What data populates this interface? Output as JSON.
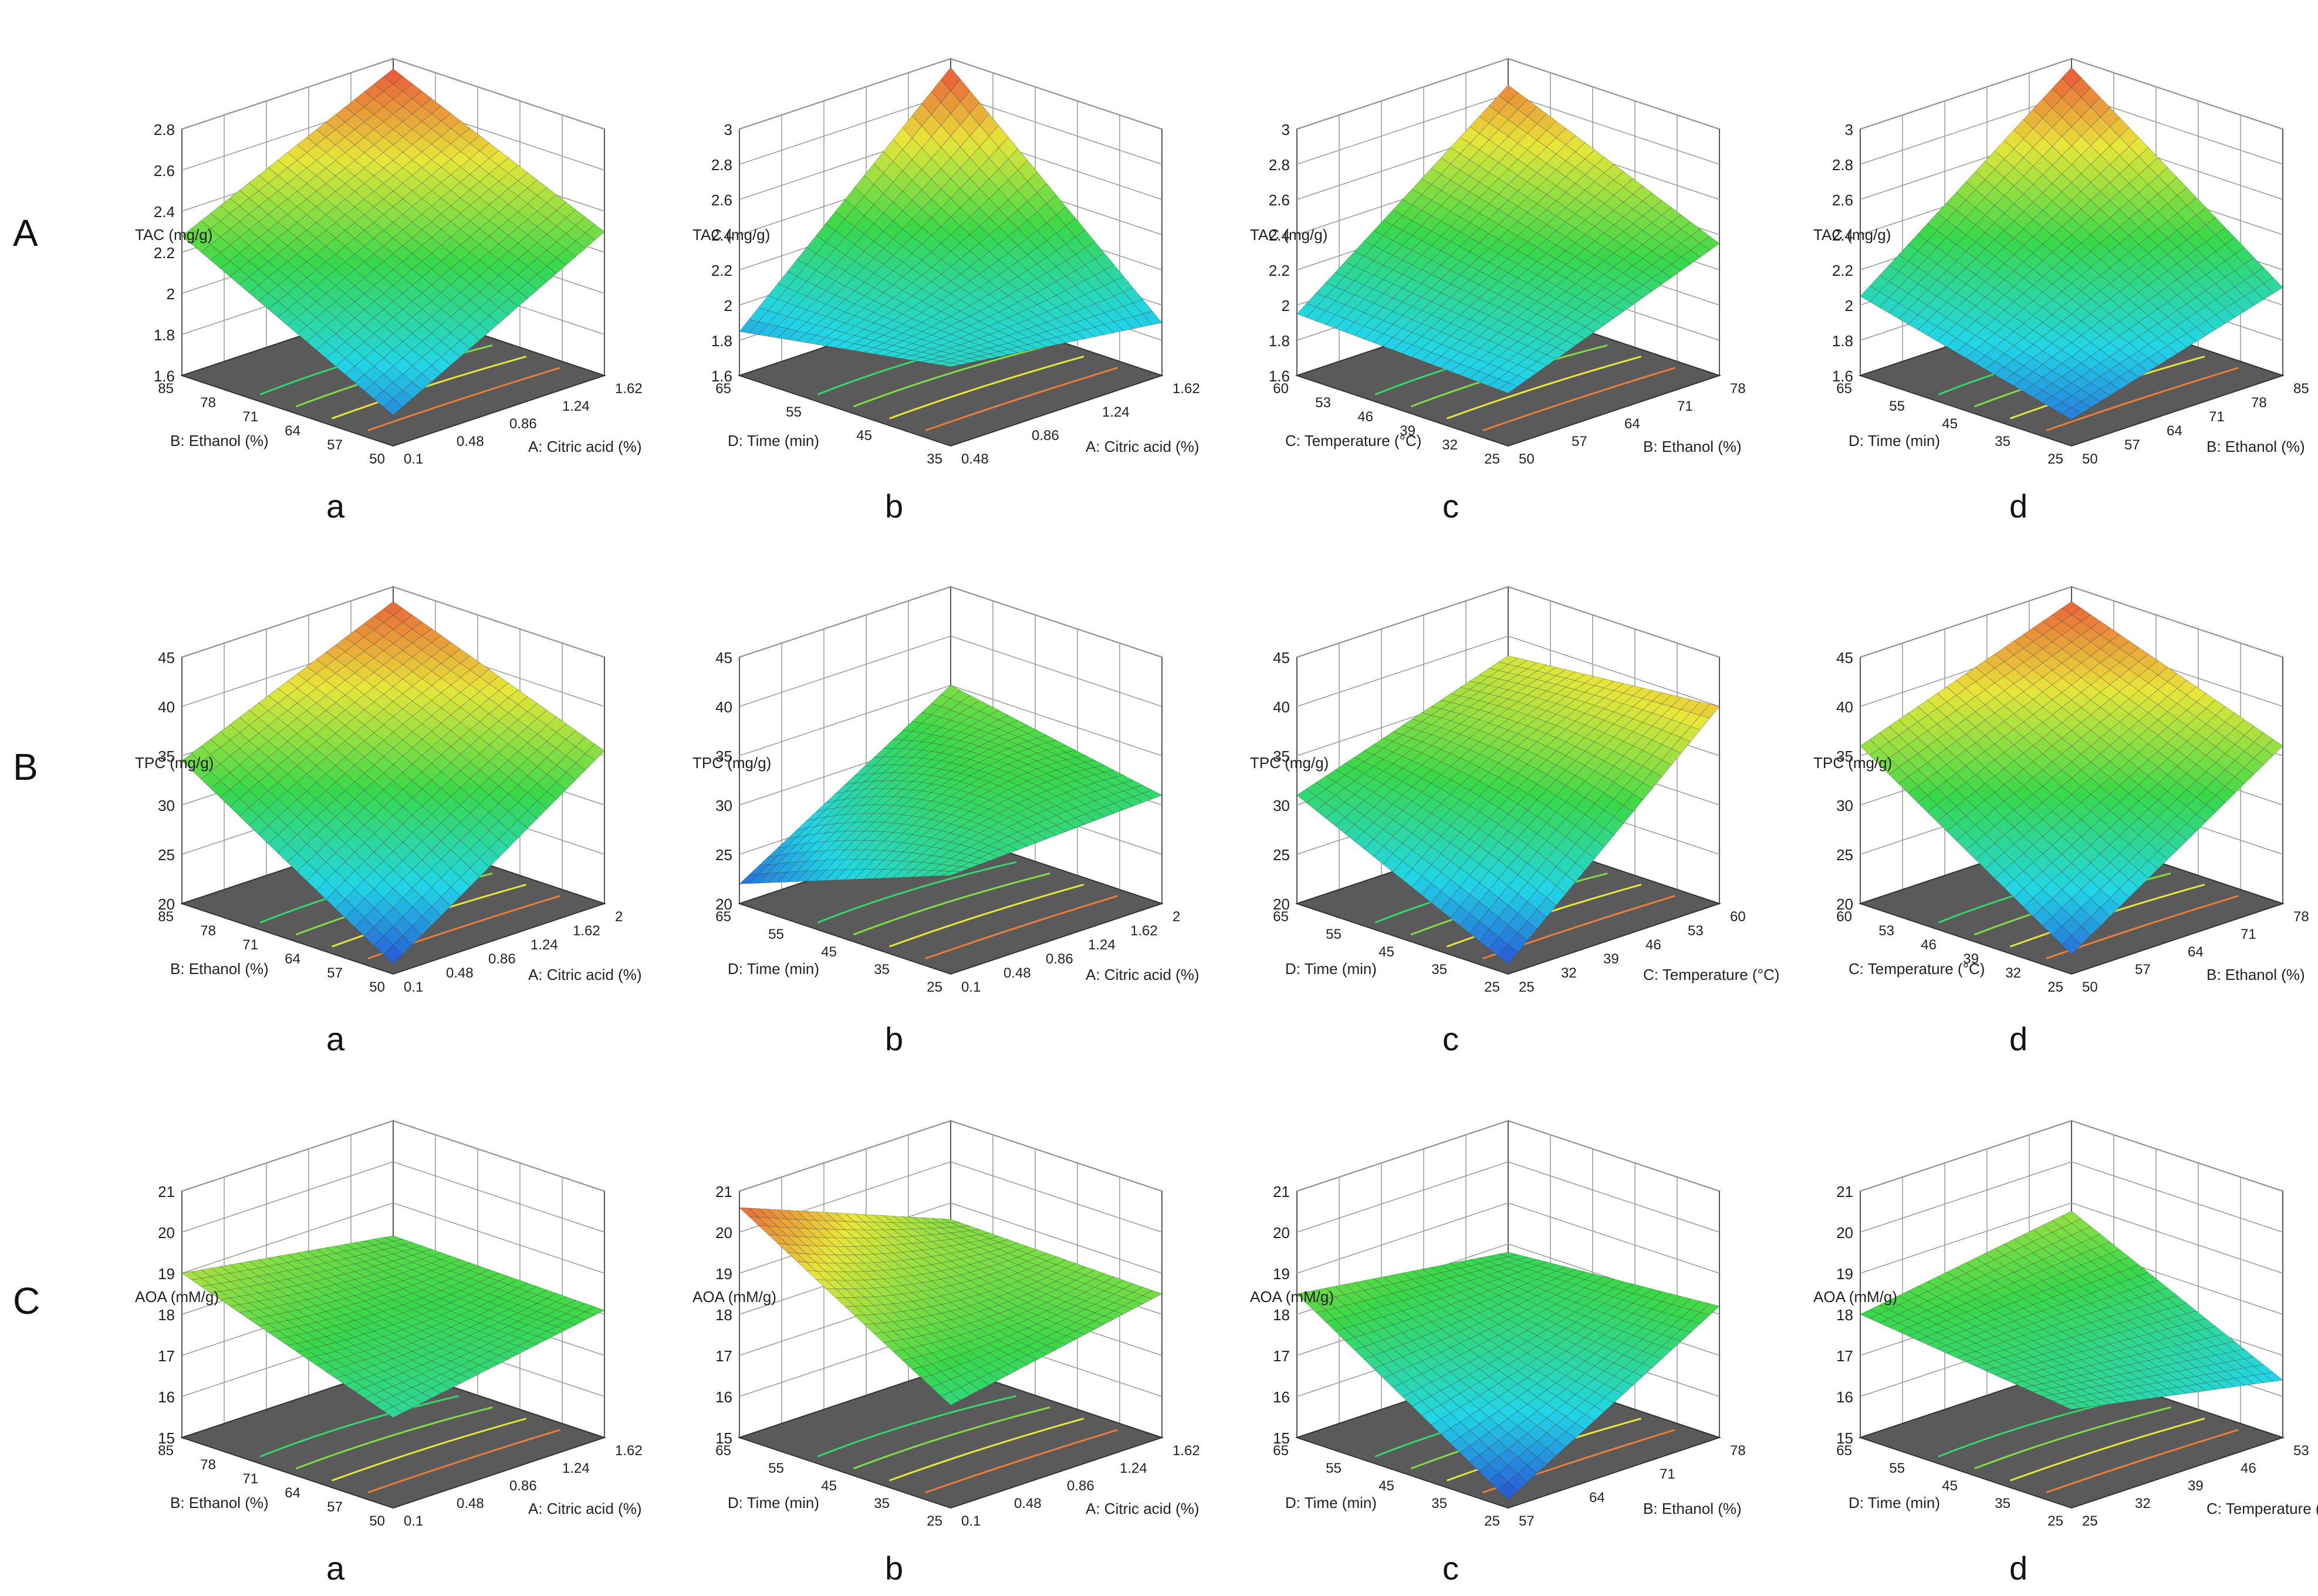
{
  "figure": {
    "row_labels": [
      "A",
      "B",
      "C"
    ],
    "col_labels": [
      "a",
      "b",
      "c",
      "d"
    ]
  },
  "chart_data": [
    {
      "type": "surface3d",
      "row": "A",
      "panel": "a",
      "zlabel": "TAC (mg/g)",
      "zlim": [
        1.6,
        2.8
      ],
      "zticks": [
        "1.6",
        "1.8",
        "2",
        "2.2",
        "2.4",
        "2.6",
        "2.8"
      ],
      "xlabel": "A: Citric acid (%)",
      "xticks": [
        "0.1",
        "0.48",
        "0.86",
        "1.24",
        "1.62"
      ],
      "ylabel": "B: Ethanol (%)",
      "yticks": [
        "50",
        "57",
        "64",
        "71",
        "78",
        "85"
      ],
      "corners": {
        "front": 1.75,
        "left": 2.28,
        "right": 2.3,
        "back": 2.75
      }
    },
    {
      "type": "surface3d",
      "row": "A",
      "panel": "b",
      "zlabel": "TAC (mg/g)",
      "zlim": [
        1.6,
        3
      ],
      "zticks": [
        "1.6",
        "1.8",
        "2",
        "2.2",
        "2.4",
        "2.6",
        "2.8",
        "3"
      ],
      "xlabel": "A: Citric acid (%)",
      "xticks": [
        "0.48",
        "0.86",
        "1.24",
        "1.62"
      ],
      "ylabel": "D: Time (min)",
      "yticks": [
        "35",
        "45",
        "55",
        "65"
      ],
      "corners": {
        "front": 2.05,
        "left": 1.85,
        "right": 1.9,
        "back": 2.95
      },
      "sag": 0.2
    },
    {
      "type": "surface3d",
      "row": "A",
      "panel": "c",
      "zlabel": "TAC (mg/g)",
      "zlim": [
        1.6,
        3
      ],
      "zticks": [
        "1.6",
        "1.8",
        "2",
        "2.2",
        "2.4",
        "2.6",
        "2.8",
        "3"
      ],
      "xlabel": "B: Ethanol (%)",
      "xticks": [
        "50",
        "57",
        "64",
        "71",
        "78"
      ],
      "ylabel": "C: Temperature (°C)",
      "yticks": [
        "25",
        "32",
        "39",
        "46",
        "53",
        "60"
      ],
      "corners": {
        "front": 1.9,
        "left": 1.95,
        "right": 2.35,
        "back": 2.85
      }
    },
    {
      "type": "surface3d",
      "row": "A",
      "panel": "d",
      "zlabel": "TAC (mg/g)",
      "zlim": [
        1.6,
        3
      ],
      "zticks": [
        "1.6",
        "1.8",
        "2",
        "2.2",
        "2.4",
        "2.6",
        "2.8",
        "3"
      ],
      "xlabel": "B: Ethanol (%)",
      "xticks": [
        "50",
        "57",
        "64",
        "71",
        "78",
        "85"
      ],
      "ylabel": "D: Time (min)",
      "yticks": [
        "25",
        "35",
        "45",
        "55",
        "65"
      ],
      "corners": {
        "front": 1.75,
        "left": 2.05,
        "right": 2.1,
        "back": 2.95
      }
    },
    {
      "type": "surface3d",
      "row": "B",
      "panel": "a",
      "zlabel": "TPC (mg/g)",
      "zlim": [
        20,
        45
      ],
      "zticks": [
        "20",
        "25",
        "30",
        "35",
        "40",
        "45"
      ],
      "xlabel": "A: Citric acid (%)",
      "xticks": [
        "0.1",
        "0.48",
        "0.86",
        "1.24",
        "1.62",
        "2"
      ],
      "ylabel": "B: Ethanol (%)",
      "yticks": [
        "50",
        "57",
        "64",
        "71",
        "78",
        "85"
      ],
      "corners": {
        "front": 21,
        "left": 34.5,
        "right": 35.5,
        "back": 43.5
      },
      "sag": -2
    },
    {
      "type": "surface3d",
      "row": "B",
      "panel": "b",
      "zlabel": "TPC (mg/g)",
      "zlim": [
        20,
        45
      ],
      "zticks": [
        "20",
        "25",
        "30",
        "35",
        "40",
        "45"
      ],
      "xlabel": "A: Citric acid (%)",
      "xticks": [
        "0.1",
        "0.48",
        "0.86",
        "1.24",
        "1.62",
        "2"
      ],
      "ylabel": "D: Time (min)",
      "yticks": [
        "25",
        "35",
        "45",
        "55",
        "65"
      ],
      "corners": {
        "front": 30,
        "left": 22,
        "right": 31,
        "back": 35
      },
      "sag": -9
    },
    {
      "type": "surface3d",
      "row": "B",
      "panel": "c",
      "zlabel": "TPC (mg/g)",
      "zlim": [
        20,
        45
      ],
      "zticks": [
        "20",
        "25",
        "30",
        "35",
        "40",
        "45"
      ],
      "xlabel": "C: Temperature (°C)",
      "xticks": [
        "25",
        "32",
        "39",
        "46",
        "53",
        "60"
      ],
      "ylabel": "D: Time (min)",
      "yticks": [
        "25",
        "35",
        "45",
        "55",
        "65"
      ],
      "corners": {
        "front": 21,
        "left": 31,
        "right": 40,
        "back": 38
      },
      "sag": -5
    },
    {
      "type": "surface3d",
      "row": "B",
      "panel": "d",
      "zlabel": "TPC (mg/g)",
      "zlim": [
        20,
        45
      ],
      "zticks": [
        "20",
        "25",
        "30",
        "35",
        "40",
        "45"
      ],
      "xlabel": "B: Ethanol (%)",
      "xticks": [
        "50",
        "57",
        "64",
        "71",
        "78"
      ],
      "ylabel": "C: Temperature (°C)",
      "yticks": [
        "25",
        "32",
        "39",
        "46",
        "53",
        "60"
      ],
      "corners": {
        "front": 22,
        "left": 36,
        "right": 36,
        "back": 43.5
      }
    },
    {
      "type": "surface3d",
      "row": "C",
      "panel": "a",
      "zlabel": "AOA (mM/g)",
      "zlim": [
        15,
        21
      ],
      "zticks": [
        "15",
        "16",
        "17",
        "18",
        "19",
        "20",
        "21"
      ],
      "xlabel": "A: Citric acid (%)",
      "xticks": [
        "0.1",
        "0.48",
        "0.86",
        "1.24",
        "1.62"
      ],
      "ylabel": "B: Ethanol (%)",
      "yticks": [
        "50",
        "57",
        "64",
        "71",
        "78",
        "85"
      ],
      "corners": {
        "front": 17.2,
        "left": 19,
        "right": 18.1,
        "back": 18.2
      },
      "sag": 0.7
    },
    {
      "type": "surface3d",
      "row": "C",
      "panel": "b",
      "zlabel": "AOA (mM/g)",
      "zlim": [
        15,
        21
      ],
      "zticks": [
        "15",
        "16",
        "17",
        "18",
        "19",
        "20",
        "21"
      ],
      "xlabel": "A: Citric acid (%)",
      "xticks": [
        "0.1",
        "0.48",
        "0.86",
        "1.24",
        "1.62"
      ],
      "ylabel": "D: Time (min)",
      "yticks": [
        "25",
        "35",
        "45",
        "55",
        "65"
      ],
      "corners": {
        "front": 17.5,
        "left": 20.6,
        "right": 18.5,
        "back": 18.6
      },
      "sag": 1.2
    },
    {
      "type": "surface3d",
      "row": "C",
      "panel": "c",
      "zlabel": "AOA (mM/g)",
      "zlim": [
        15,
        21
      ],
      "zticks": [
        "15",
        "16",
        "17",
        "18",
        "19",
        "20",
        "21"
      ],
      "xlabel": "B: Ethanol (%)",
      "xticks": [
        "57",
        "64",
        "71",
        "78"
      ],
      "ylabel": "D: Time (min)",
      "yticks": [
        "25",
        "35",
        "45",
        "55",
        "65"
      ],
      "corners": {
        "front": 15.2,
        "left": 18.5,
        "right": 18.2,
        "back": 17.8
      },
      "sag": 0.3
    },
    {
      "type": "surface3d",
      "row": "C",
      "panel": "d",
      "zlabel": "AOA (mM/g)",
      "zlim": [
        15,
        21
      ],
      "zticks": [
        "15",
        "16",
        "17",
        "18",
        "19",
        "20",
        "21"
      ],
      "xlabel": "C: Temperature (°C)",
      "xticks": [
        "25",
        "32",
        "39",
        "46",
        "53"
      ],
      "ylabel": "D: Time (min)",
      "yticks": [
        "25",
        "35",
        "45",
        "55",
        "65"
      ],
      "corners": {
        "front": 17.4,
        "left": 18,
        "right": 16.4,
        "back": 18.8
      }
    }
  ],
  "colors": {
    "wall_line": "#555555",
    "floor": "#5a5a5a",
    "mesh": "#3b3b3b",
    "scale_low": "#2a3bd0",
    "scale_mid1": "#22d6e6",
    "scale_mid2": "#39d84a",
    "scale_mid3": "#e8e63a",
    "scale_high": "#e8383a"
  }
}
